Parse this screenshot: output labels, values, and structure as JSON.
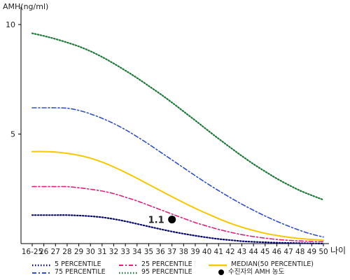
{
  "chart_data": {
    "type": "line",
    "ylabel": "AMH(ng/ml)",
    "xlabel": "나이",
    "categories": [
      "16-25",
      "26",
      "27",
      "28",
      "29",
      "30",
      "31",
      "32",
      "33",
      "34",
      "35",
      "36",
      "37",
      "38",
      "39",
      "40",
      "41",
      "42",
      "43",
      "44",
      "45",
      "46",
      "47",
      "48",
      "49",
      "50"
    ],
    "ylim": [
      0,
      10.8
    ],
    "yticks": [
      5,
      10
    ],
    "grid": false,
    "legend_position": "bottom",
    "series": [
      {
        "name": "5 PERCENTILE",
        "color": "#0a0a6e",
        "style": "dotted",
        "values": [
          1.3,
          1.3,
          1.3,
          1.3,
          1.28,
          1.25,
          1.2,
          1.12,
          1.02,
          0.9,
          0.78,
          0.66,
          0.55,
          0.45,
          0.36,
          0.28,
          0.21,
          0.16,
          0.11,
          0.08,
          0.06,
          0.04,
          0.03,
          0.02,
          0.01,
          0.0
        ]
      },
      {
        "name": "25 PERCENTILE",
        "color": "#e0207a",
        "style": "dashdot",
        "values": [
          2.6,
          2.6,
          2.6,
          2.6,
          2.55,
          2.48,
          2.4,
          2.28,
          2.12,
          1.95,
          1.75,
          1.55,
          1.35,
          1.15,
          0.96,
          0.8,
          0.65,
          0.52,
          0.41,
          0.32,
          0.25,
          0.19,
          0.15,
          0.12,
          0.1,
          0.08
        ]
      },
      {
        "name": "MEDIAN(50 PERCENTILE)",
        "color": "#f5c800",
        "style": "solid",
        "values": [
          4.2,
          4.2,
          4.18,
          4.12,
          4.03,
          3.9,
          3.72,
          3.5,
          3.25,
          2.98,
          2.7,
          2.42,
          2.14,
          1.87,
          1.61,
          1.37,
          1.14,
          0.93,
          0.75,
          0.6,
          0.47,
          0.37,
          0.29,
          0.23,
          0.19,
          0.15
        ]
      },
      {
        "name": "75 PERCENTILE",
        "color": "#3050c8",
        "style": "dashdot",
        "values": [
          6.2,
          6.2,
          6.2,
          6.18,
          6.08,
          5.92,
          5.72,
          5.48,
          5.2,
          4.88,
          4.54,
          4.18,
          3.82,
          3.46,
          3.1,
          2.75,
          2.42,
          2.1,
          1.8,
          1.52,
          1.26,
          1.02,
          0.8,
          0.6,
          0.43,
          0.3
        ]
      },
      {
        "name": "95 PERCENTILE",
        "color": "#1e7a3a",
        "style": "dotted",
        "values": [
          9.6,
          9.48,
          9.34,
          9.18,
          9.0,
          8.78,
          8.52,
          8.22,
          7.9,
          7.56,
          7.2,
          6.83,
          6.44,
          6.03,
          5.62,
          5.2,
          4.79,
          4.39,
          4.0,
          3.63,
          3.29,
          2.97,
          2.68,
          2.42,
          2.2,
          2.0
        ]
      }
    ],
    "patient_point": {
      "name": "수진자의 AMH 농도",
      "x": "37",
      "y": 1.1,
      "label": "1.1"
    }
  }
}
